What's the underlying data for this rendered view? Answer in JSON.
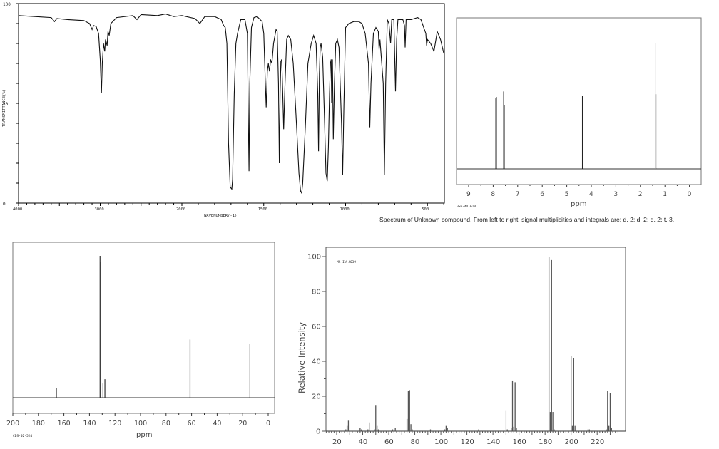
{
  "caption": "Spectrum of Unknown compound. From left to right, signal multiplicities and integrals are: d, 2; d, 2; q, 2; t, 3.",
  "chart_data": [
    {
      "id": "ir",
      "type": "line",
      "title": "",
      "xlabel": "WAVENUMBER(-1)",
      "ylabel": "TRANSMITTANCE(%)",
      "xlim": [
        4000,
        400
      ],
      "ylim": [
        0,
        100
      ],
      "x_ticks": [
        4000,
        3000,
        2000,
        1500,
        1000,
        500
      ],
      "y_ticks": [
        0,
        50,
        100
      ],
      "grid": false,
      "points": [
        [
          4000,
          94
        ],
        [
          3800,
          93.5
        ],
        [
          3600,
          93
        ],
        [
          3560,
          91
        ],
        [
          3530,
          92.5
        ],
        [
          3400,
          92
        ],
        [
          3200,
          91.5
        ],
        [
          3130,
          90
        ],
        [
          3100,
          87
        ],
        [
          3080,
          89
        ],
        [
          3050,
          88.5
        ],
        [
          3020,
          85
        ],
        [
          3000,
          72
        ],
        [
          2985,
          55
        ],
        [
          2975,
          70
        ],
        [
          2960,
          80
        ],
        [
          2945,
          76
        ],
        [
          2935,
          82
        ],
        [
          2915,
          79
        ],
        [
          2905,
          86
        ],
        [
          2890,
          84
        ],
        [
          2870,
          90
        ],
        [
          2800,
          93
        ],
        [
          2600,
          94
        ],
        [
          2550,
          92
        ],
        [
          2500,
          94.5
        ],
        [
          2300,
          94
        ],
        [
          2200,
          94.8
        ],
        [
          2100,
          93.5
        ],
        [
          2000,
          94
        ],
        [
          1920,
          92.5
        ],
        [
          1890,
          90
        ],
        [
          1860,
          93.5
        ],
        [
          1800,
          93.5
        ],
        [
          1760,
          92
        ],
        [
          1745,
          89
        ],
        [
          1735,
          88
        ],
        [
          1725,
          80
        ],
        [
          1715,
          30
        ],
        [
          1705,
          8
        ],
        [
          1695,
          7
        ],
        [
          1690,
          12
        ],
        [
          1680,
          55
        ],
        [
          1670,
          80
        ],
        [
          1660,
          85
        ],
        [
          1640,
          92
        ],
        [
          1615,
          92
        ],
        [
          1600,
          85
        ],
        [
          1595,
          50
        ],
        [
          1590,
          16
        ],
        [
          1585,
          60
        ],
        [
          1575,
          88
        ],
        [
          1560,
          93
        ],
        [
          1540,
          93.5
        ],
        [
          1510,
          91
        ],
        [
          1500,
          85
        ],
        [
          1490,
          60
        ],
        [
          1485,
          48
        ],
        [
          1478,
          66
        ],
        [
          1472,
          70
        ],
        [
          1465,
          66
        ],
        [
          1458,
          72
        ],
        [
          1450,
          70
        ],
        [
          1440,
          80
        ],
        [
          1425,
          87
        ],
        [
          1418,
          86
        ],
        [
          1410,
          60
        ],
        [
          1405,
          20
        ],
        [
          1400,
          55
        ],
        [
          1395,
          71
        ],
        [
          1390,
          72
        ],
        [
          1384,
          55
        ],
        [
          1378,
          37
        ],
        [
          1370,
          60
        ],
        [
          1360,
          82
        ],
        [
          1350,
          84
        ],
        [
          1335,
          82
        ],
        [
          1320,
          70
        ],
        [
          1300,
          40
        ],
        [
          1285,
          15
        ],
        [
          1275,
          6
        ],
        [
          1268,
          5
        ],
        [
          1262,
          10
        ],
        [
          1245,
          40
        ],
        [
          1230,
          70
        ],
        [
          1210,
          80
        ],
        [
          1195,
          84
        ],
        [
          1180,
          80
        ],
        [
          1170,
          55
        ],
        [
          1165,
          26
        ],
        [
          1160,
          65
        ],
        [
          1155,
          78
        ],
        [
          1150,
          80
        ],
        [
          1140,
          73
        ],
        [
          1128,
          40
        ],
        [
          1120,
          15
        ],
        [
          1112,
          11
        ],
        [
          1105,
          28
        ],
        [
          1098,
          55
        ],
        [
          1093,
          70
        ],
        [
          1088,
          72
        ],
        [
          1085,
          50
        ],
        [
          1080,
          72
        ],
        [
          1075,
          32
        ],
        [
          1068,
          60
        ],
        [
          1060,
          80
        ],
        [
          1050,
          82
        ],
        [
          1040,
          78
        ],
        [
          1025,
          40
        ],
        [
          1018,
          14
        ],
        [
          1010,
          50
        ],
        [
          1000,
          88
        ],
        [
          980,
          90
        ],
        [
          950,
          91
        ],
        [
          920,
          91
        ],
        [
          900,
          90
        ],
        [
          880,
          85
        ],
        [
          860,
          70
        ],
        [
          852,
          38
        ],
        [
          845,
          60
        ],
        [
          830,
          85
        ],
        [
          815,
          88
        ],
        [
          800,
          86
        ],
        [
          795,
          77
        ],
        [
          790,
          82
        ],
        [
          770,
          60
        ],
        [
          763,
          14
        ],
        [
          755,
          60
        ],
        [
          745,
          92
        ],
        [
          735,
          90
        ],
        [
          725,
          80
        ],
        [
          718,
          92
        ],
        [
          705,
          92
        ],
        [
          700,
          73
        ],
        [
          695,
          56
        ],
        [
          688,
          82
        ],
        [
          680,
          92
        ],
        [
          650,
          92
        ],
        [
          640,
          89
        ],
        [
          636,
          78
        ],
        [
          630,
          92
        ],
        [
          600,
          92
        ],
        [
          560,
          93
        ],
        [
          540,
          92
        ],
        [
          510,
          85
        ],
        [
          505,
          79
        ],
        [
          500,
          82
        ],
        [
          480,
          80
        ],
        [
          460,
          76
        ],
        [
          440,
          86
        ],
        [
          420,
          82
        ],
        [
          400,
          75
        ]
      ]
    },
    {
      "id": "h_nmr",
      "type": "bar",
      "title": "",
      "xlabel": "ppm",
      "code": "HSP-44-610",
      "xlim": [
        9.5,
        -0.5
      ],
      "x_ticks": [
        9,
        8,
        7,
        6,
        5,
        4,
        3,
        2,
        1,
        0
      ],
      "peaks": [
        {
          "ppm": 7.89,
          "height": 0.51,
          "mult": "d",
          "integral": 2
        },
        {
          "ppm": 7.87,
          "height": 0.52,
          "mult": "d",
          "integral": 2
        },
        {
          "ppm": 7.57,
          "height": 0.56,
          "mult": "d",
          "integral": 2
        },
        {
          "ppm": 7.55,
          "height": 0.46,
          "mult": "d",
          "integral": 2
        },
        {
          "ppm": 4.36,
          "height": 0.53,
          "mult": "q",
          "integral": 2
        },
        {
          "ppm": 4.34,
          "height": 0.31,
          "mult": "q",
          "integral": 2
        },
        {
          "ppm": 1.38,
          "height": 0.91,
          "mult": "t",
          "integral": 3,
          "faint_above": 0.54
        },
        {
          "ppm": 1.37,
          "height": 0.54,
          "mult": "t",
          "integral": 3
        }
      ]
    },
    {
      "id": "c_nmr",
      "type": "bar",
      "title": "",
      "xlabel": "ppm",
      "code": "CDS-02-524",
      "xlim": [
        200,
        -5
      ],
      "x_ticks": [
        200,
        180,
        160,
        140,
        120,
        100,
        80,
        60,
        40,
        20,
        0
      ],
      "peaks": [
        {
          "ppm": 165.9,
          "height": 0.07
        },
        {
          "ppm": 131.7,
          "height": 1.0
        },
        {
          "ppm": 131.1,
          "height": 0.96
        },
        {
          "ppm": 129.4,
          "height": 0.1
        },
        {
          "ppm": 127.9,
          "height": 0.13
        },
        {
          "ppm": 61.2,
          "height": 0.41
        },
        {
          "ppm": 14.3,
          "height": 0.38
        }
      ]
    },
    {
      "id": "ms",
      "type": "bar",
      "title": "",
      "xlabel": "",
      "ylabel": "Relative Intensity",
      "code": "MS-IW-4039",
      "xlim": [
        10,
        238
      ],
      "ylim": [
        0,
        100
      ],
      "x_ticks": [
        20,
        40,
        60,
        80,
        100,
        120,
        140,
        160,
        180,
        200,
        220
      ],
      "y_ticks": [
        0,
        20,
        40,
        60,
        80,
        100
      ],
      "peaks": [
        [
          27,
          1
        ],
        [
          28,
          3
        ],
        [
          29,
          6
        ],
        [
          38,
          2
        ],
        [
          39,
          1
        ],
        [
          44,
          1
        ],
        [
          45,
          5
        ],
        [
          49,
          1
        ],
        [
          50,
          15
        ],
        [
          51,
          3
        ],
        [
          52,
          1
        ],
        [
          63,
          1
        ],
        [
          65,
          2
        ],
        [
          74,
          7
        ],
        [
          75,
          23
        ],
        [
          76,
          23.5
        ],
        [
          77,
          4
        ],
        [
          78,
          1
        ],
        [
          92,
          1
        ],
        [
          103,
          1
        ],
        [
          104,
          3
        ],
        [
          105,
          2
        ],
        [
          129,
          1
        ],
        [
          150,
          12
        ],
        [
          151,
          1
        ],
        [
          154,
          2
        ],
        [
          155,
          29
        ],
        [
          156,
          2.5
        ],
        [
          157,
          28
        ],
        [
          158,
          2
        ],
        [
          183,
          100
        ],
        [
          184,
          11
        ],
        [
          185,
          98
        ],
        [
          186,
          11
        ],
        [
          187,
          1
        ],
        [
          200,
          43
        ],
        [
          201,
          3
        ],
        [
          202,
          42
        ],
        [
          203,
          3
        ],
        [
          213,
          1
        ],
        [
          214,
          1
        ],
        [
          227,
          1
        ],
        [
          228,
          23
        ],
        [
          229,
          3
        ],
        [
          230,
          22
        ],
        [
          231,
          2
        ]
      ]
    }
  ]
}
